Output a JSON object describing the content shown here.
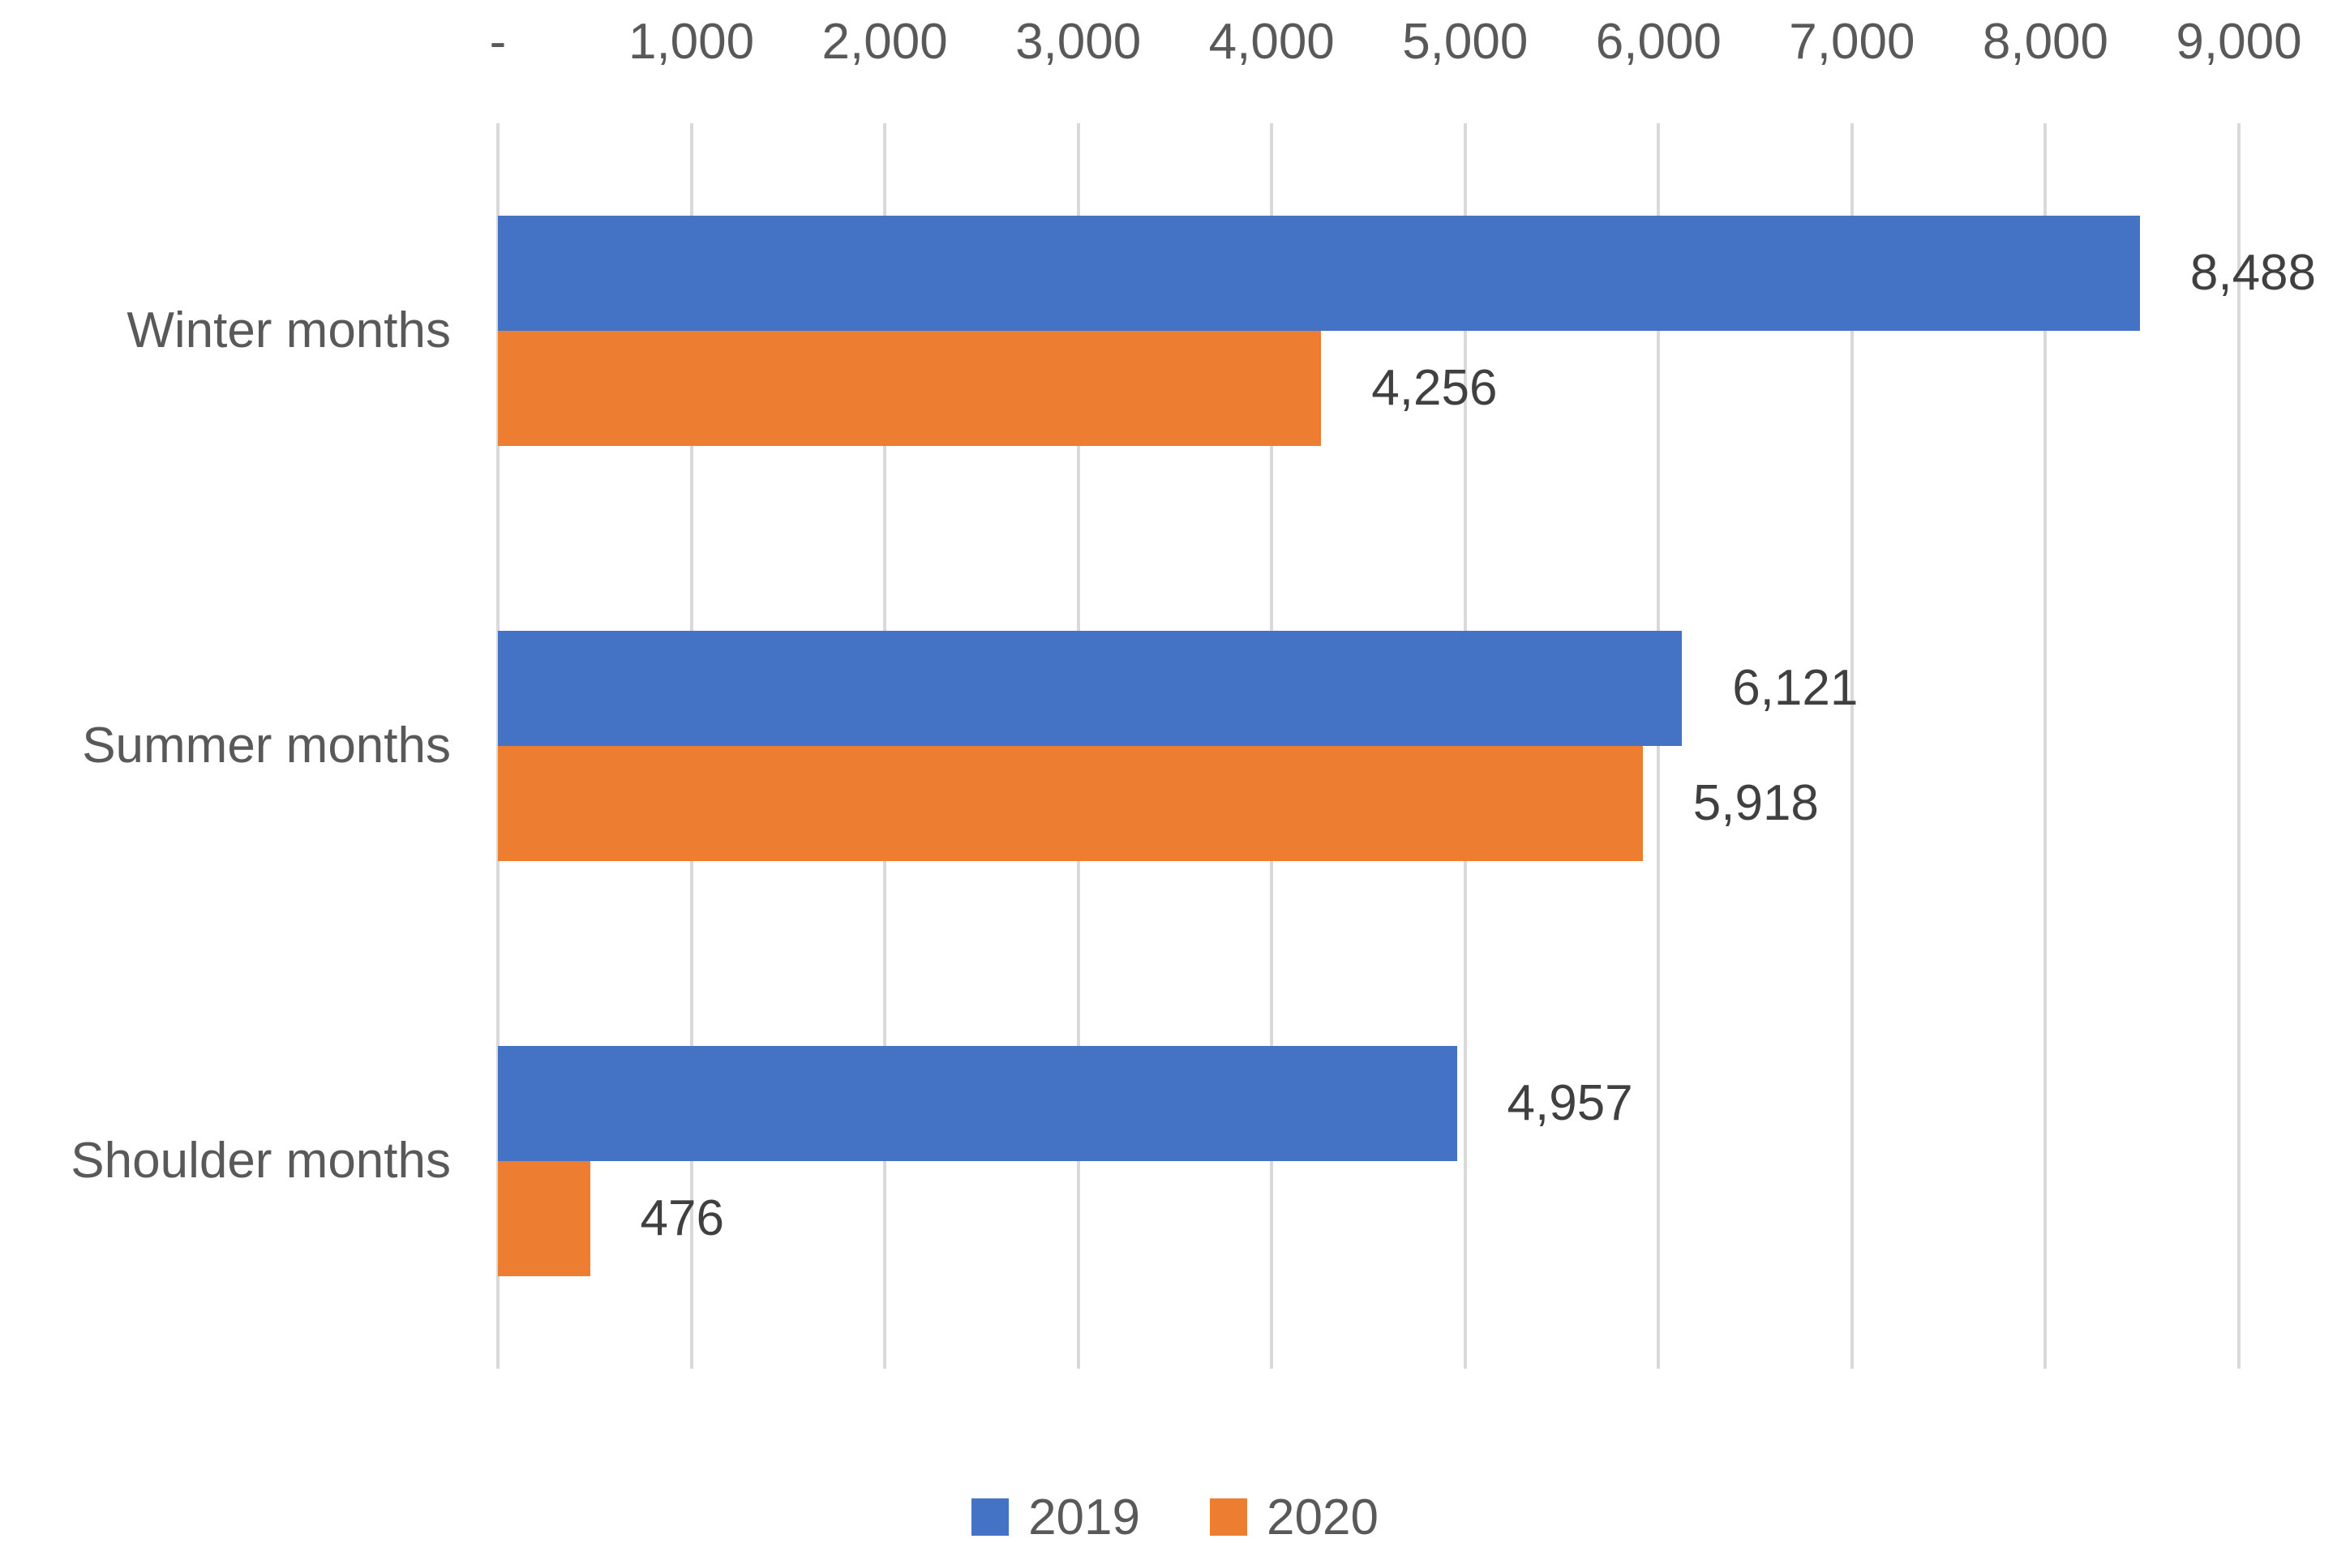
{
  "chart_data": {
    "type": "bar",
    "orientation": "horizontal",
    "title": "",
    "categories": [
      "Winter months",
      "Summer months",
      "Shoulder months"
    ],
    "series": [
      {
        "name": "2019",
        "color": "#4472C4",
        "values": [
          8488,
          6121,
          4957
        ],
        "value_labels": [
          "8,488",
          "6,121",
          "4,957"
        ]
      },
      {
        "name": "2020",
        "color": "#ED7D31",
        "values": [
          4256,
          5918,
          476
        ],
        "value_labels": [
          "4,256",
          "5,918",
          "476"
        ]
      }
    ],
    "x_axis": {
      "position": "top",
      "min": 0,
      "max": 9000,
      "tick_interval": 1000,
      "tick_labels": [
        "-",
        "1,000",
        "2,000",
        "3,000",
        "4,000",
        "5,000",
        "6,000",
        "7,000",
        "8,000",
        "9,000"
      ]
    },
    "y_axis": {
      "position": "left"
    },
    "grid": true,
    "legend": {
      "position": "bottom",
      "entries": [
        "2019",
        "2020"
      ]
    },
    "colors": {
      "series_2019": "#4472C4",
      "series_2020": "#ED7D31",
      "gridline": "#D9D9D9",
      "axis_text": "#595959",
      "data_label_text": "#404040",
      "background": "#FFFFFF"
    }
  }
}
